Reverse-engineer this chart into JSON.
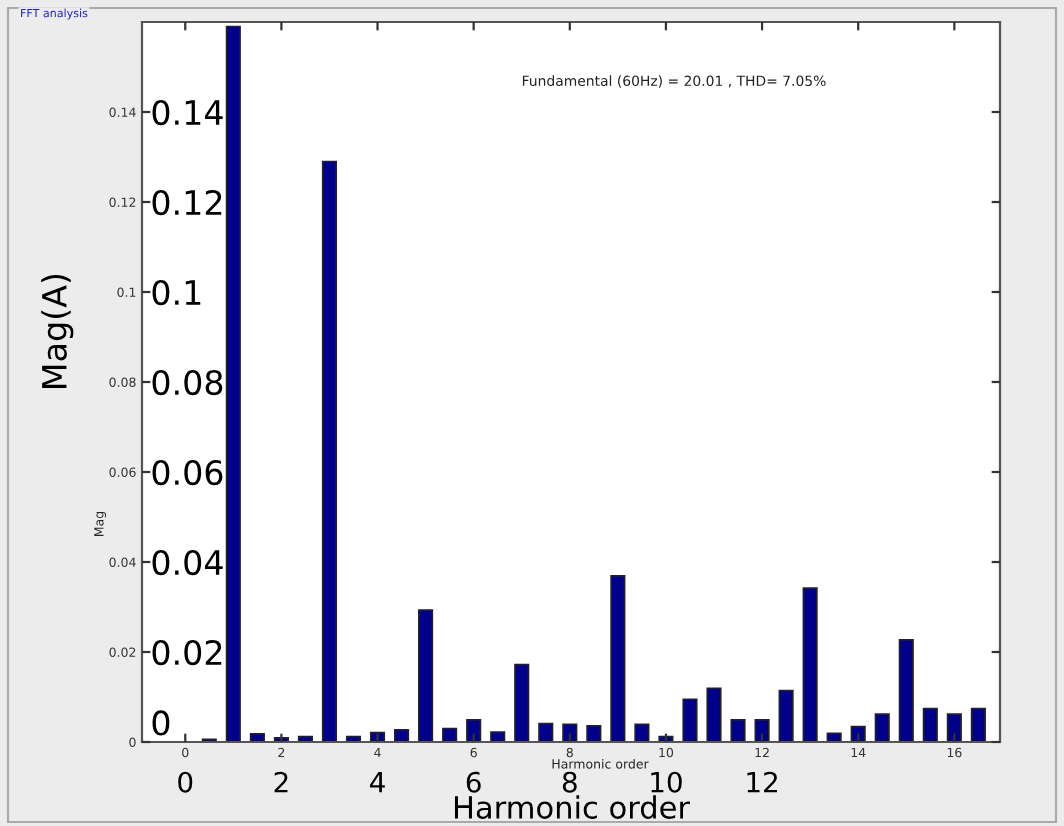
{
  "chart_data": {
    "type": "bar",
    "title": "Fundamental (60Hz) = 20.01 , THD= 7.05%",
    "x": [
      0.5,
      1,
      1.5,
      2,
      2.5,
      3,
      3.5,
      4,
      4.5,
      5,
      5.5,
      6,
      6.5,
      7,
      7.5,
      8,
      8.5,
      9,
      9.5,
      10,
      10.5,
      11,
      11.5,
      12,
      12.5,
      13,
      13.5,
      14,
      14.5,
      15,
      15.5,
      16,
      16.5
    ],
    "values": [
      0.0006,
      0.159,
      0.0018,
      0.0009,
      0.0012,
      0.129,
      0.0012,
      0.0021,
      0.0027,
      0.0293,
      0.003,
      0.0049,
      0.0022,
      0.0172,
      0.0041,
      0.0039,
      0.0036,
      0.0369,
      0.0039,
      0.0012,
      0.0095,
      0.0119,
      0.0049,
      0.0049,
      0.0114,
      0.0342,
      0.0019,
      0.0034,
      0.0062,
      0.0227,
      0.0074,
      0.0062,
      0.0074
    ],
    "color": "#00008b",
    "xlabel": "Harmonic order",
    "ylabel": "Mag(A)",
    "xlim": [
      -0.9,
      16.95
    ],
    "ylim": [
      0,
      0.16
    ],
    "xticks": [
      0,
      2,
      4,
      6,
      8,
      10,
      12
    ],
    "yticks": [
      0,
      0.02,
      0.04,
      0.06,
      0.08,
      0.1,
      0.12,
      0.14
    ],
    "x2lim": [
      -0.9,
      16.95
    ],
    "x2ticks": [
      0,
      2,
      4,
      6,
      8,
      10,
      12,
      14,
      16
    ],
    "y2lim": [
      0,
      0.16
    ],
    "y2ticks": [
      0,
      0.02,
      0.04,
      0.06,
      0.08,
      0.1,
      0.12,
      0.14
    ],
    "annotations": [
      "FFT analysis",
      "Harmonic order",
      "Mag"
    ],
    "grid": false,
    "legend": false
  }
}
